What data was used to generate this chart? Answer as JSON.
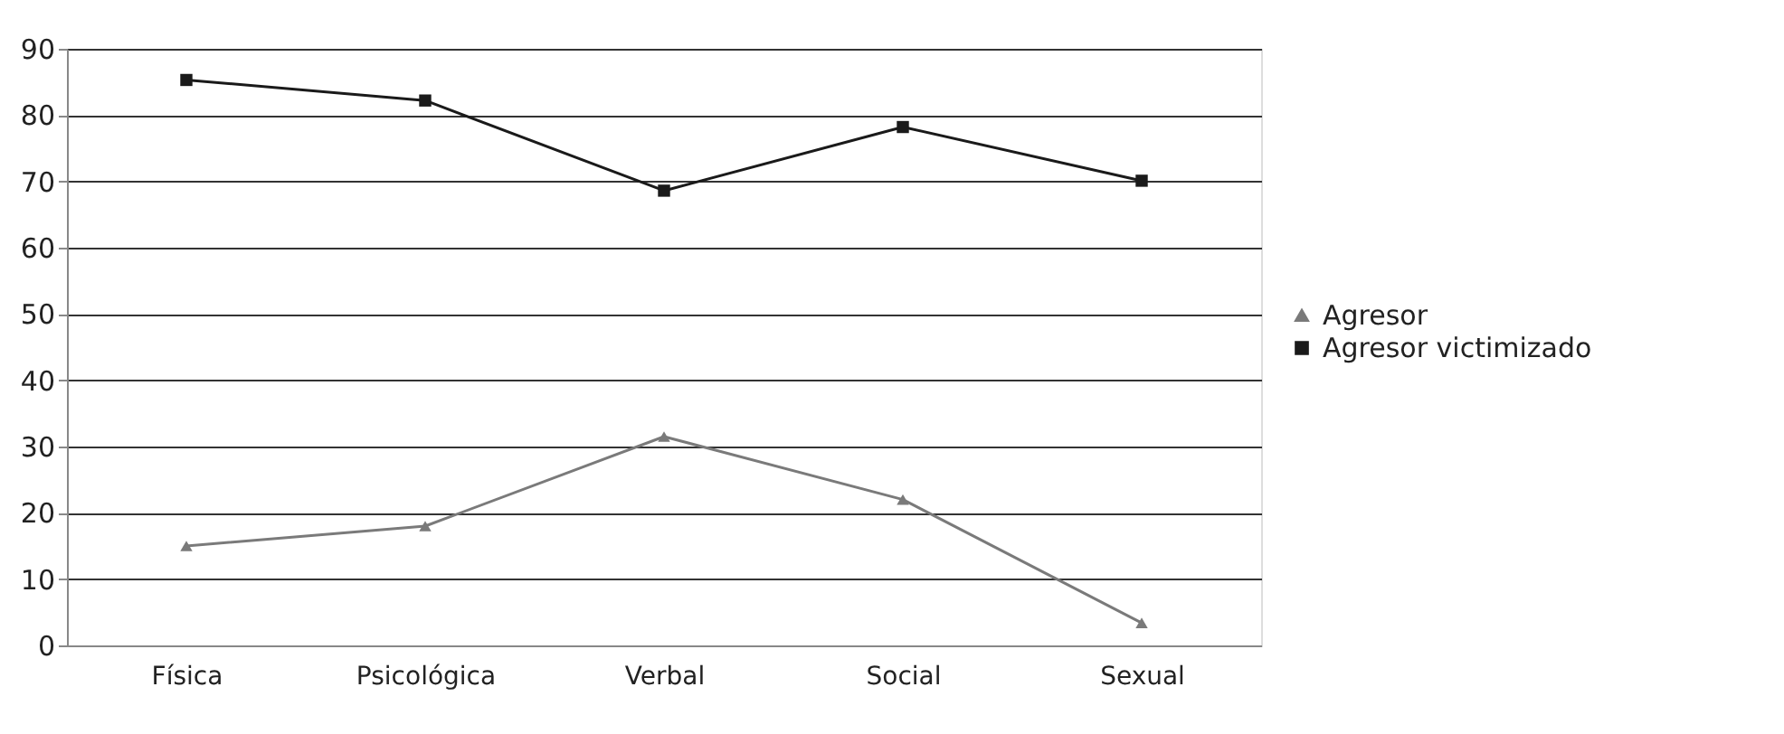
{
  "chart_data": {
    "type": "line",
    "categories": [
      "Física",
      "Psicológica",
      "Verbal",
      "Social",
      "Sexual"
    ],
    "series": [
      {
        "name": "Agresor",
        "color": "#7a7a7a",
        "marker": "triangle",
        "values": [
          15,
          18,
          31.5,
          22,
          3.4
        ]
      },
      {
        "name": "Agresor victimizado",
        "color": "#1a1a1a",
        "marker": "square",
        "values": [
          85.3,
          82.2,
          68.6,
          78.2,
          70.1
        ]
      }
    ],
    "ylim": [
      0,
      90
    ],
    "yticks": [
      0,
      10,
      20,
      30,
      40,
      50,
      60,
      70,
      80,
      90
    ],
    "grid": "y",
    "legend": "right",
    "line_style": "solid"
  }
}
